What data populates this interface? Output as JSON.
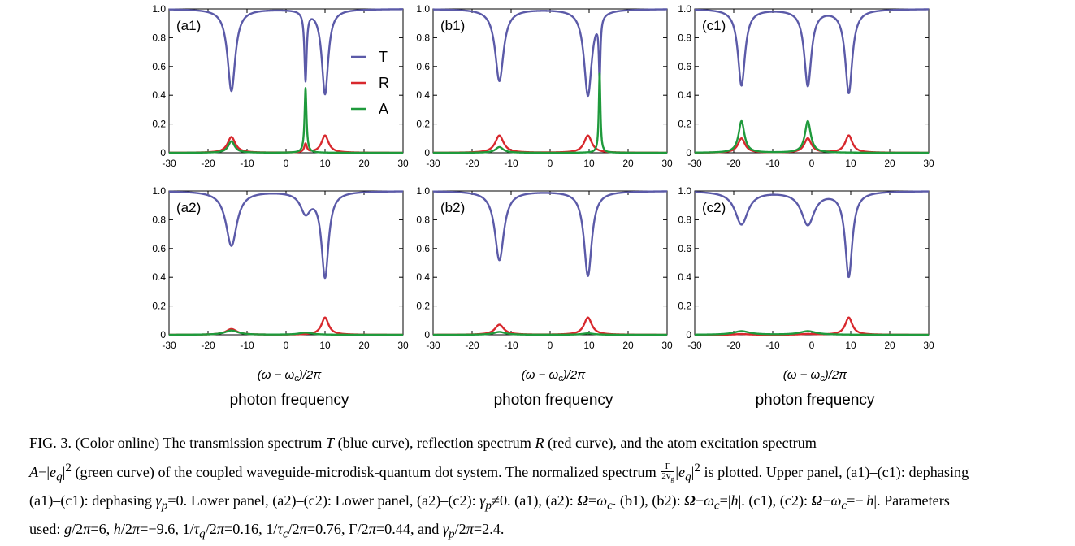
{
  "figure": {
    "xlabel_math": "(ω − ω",
    "xlabel_sub": "c",
    "xlabel_tail": ")/2π",
    "xlabel_text": "photon frequency",
    "legend": [
      {
        "name": "T",
        "color": "#5b5aa8"
      },
      {
        "name": "R",
        "color": "#d8282d"
      },
      {
        "name": "A",
        "color": "#1f9a3c"
      }
    ]
  },
  "chart_data": [
    {
      "type": "line",
      "panel": "(a1)",
      "xlim": [
        -30,
        30
      ],
      "ylim": [
        0,
        1
      ],
      "xticks": [
        "-30",
        "-20",
        "-10",
        "0",
        "10",
        "20",
        "30"
      ],
      "yticks": [
        "0",
        "0.2",
        "0.4",
        "0.6",
        "0.8",
        "1.0"
      ],
      "series": [
        {
          "name": "T",
          "color": "#5b5aa8",
          "baseline": 1,
          "features": [
            {
              "x": -14,
              "depth": 0.57,
              "width": 1.2
            },
            {
              "x": 5,
              "depth": 0.48,
              "width": 0.35
            },
            {
              "x": 10,
              "depth": 0.59,
              "width": 1.0
            }
          ]
        },
        {
          "name": "R",
          "color": "#d8282d",
          "baseline": 0,
          "features": [
            {
              "x": -14,
              "height": 0.11,
              "width": 1.2
            },
            {
              "x": 5,
              "height": 0.06,
              "width": 0.4
            },
            {
              "x": 10,
              "height": 0.12,
              "width": 1.1
            }
          ]
        },
        {
          "name": "A",
          "color": "#1f9a3c",
          "baseline": 0,
          "features": [
            {
              "x": -14,
              "height": 0.08,
              "width": 1.0
            },
            {
              "x": 5,
              "height": 0.45,
              "width": 0.3
            }
          ]
        }
      ]
    },
    {
      "type": "line",
      "panel": "(b1)",
      "xlim": [
        -30,
        30
      ],
      "ylim": [
        0,
        1
      ],
      "xticks": [
        "-30",
        "-20",
        "-10",
        "0",
        "10",
        "20",
        "30"
      ],
      "yticks": [
        "0",
        "0.2",
        "0.4",
        "0.6",
        "0.8",
        "1.0"
      ],
      "series": [
        {
          "name": "T",
          "color": "#5b5aa8",
          "baseline": 1,
          "features": [
            {
              "x": -13,
              "depth": 0.5,
              "width": 1.3
            },
            {
              "x": 9.7,
              "depth": 0.6,
              "width": 1.2
            },
            {
              "x": 12.7,
              "depth": 0.42,
              "width": 0.25
            }
          ]
        },
        {
          "name": "R",
          "color": "#d8282d",
          "baseline": 0,
          "features": [
            {
              "x": -13,
              "height": 0.12,
              "width": 1.3
            },
            {
              "x": 9.7,
              "height": 0.12,
              "width": 1.2
            }
          ]
        },
        {
          "name": "A",
          "color": "#1f9a3c",
          "baseline": 0,
          "features": [
            {
              "x": -13,
              "height": 0.04,
              "width": 1.2
            },
            {
              "x": 12.7,
              "height": 0.56,
              "width": 0.25
            }
          ]
        }
      ]
    },
    {
      "type": "line",
      "panel": "(c1)",
      "xlim": [
        -30,
        30
      ],
      "ylim": [
        0,
        1
      ],
      "xticks": [
        "-30",
        "-20",
        "-10",
        "0",
        "10",
        "20",
        "30"
      ],
      "yticks": [
        "0",
        "0.2",
        "0.4",
        "0.6",
        "0.8",
        "1.0"
      ],
      "series": [
        {
          "name": "T",
          "color": "#5b5aa8",
          "baseline": 1,
          "features": [
            {
              "x": -18,
              "depth": 0.53,
              "width": 1.1
            },
            {
              "x": -1,
              "depth": 0.53,
              "width": 1.1
            },
            {
              "x": 9.5,
              "depth": 0.58,
              "width": 1.1
            }
          ]
        },
        {
          "name": "R",
          "color": "#d8282d",
          "baseline": 0,
          "features": [
            {
              "x": -18,
              "height": 0.1,
              "width": 1.1
            },
            {
              "x": -1,
              "height": 0.1,
              "width": 1.1
            },
            {
              "x": 9.5,
              "height": 0.12,
              "width": 1.1
            }
          ]
        },
        {
          "name": "A",
          "color": "#1f9a3c",
          "baseline": 0,
          "features": [
            {
              "x": -18,
              "height": 0.22,
              "width": 0.9
            },
            {
              "x": -1,
              "height": 0.22,
              "width": 0.9
            }
          ]
        }
      ]
    },
    {
      "type": "line",
      "panel": "(a2)",
      "xlim": [
        -30,
        30
      ],
      "ylim": [
        0,
        1
      ],
      "xticks": [
        "-30",
        "-20",
        "-10",
        "0",
        "10",
        "20",
        "30"
      ],
      "yticks": [
        "0",
        "0.2",
        "0.4",
        "0.6",
        "0.8",
        "1.0"
      ],
      "series": [
        {
          "name": "T",
          "color": "#5b5aa8",
          "baseline": 1,
          "features": [
            {
              "x": -14,
              "depth": 0.38,
              "width": 1.7
            },
            {
              "x": 5,
              "depth": 0.14,
              "width": 1.6
            },
            {
              "x": 10,
              "depth": 0.59,
              "width": 1.1
            }
          ]
        },
        {
          "name": "R",
          "color": "#d8282d",
          "baseline": 0,
          "features": [
            {
              "x": -14,
              "height": 0.04,
              "width": 1.7
            },
            {
              "x": 10,
              "height": 0.12,
              "width": 1.1
            }
          ]
        },
        {
          "name": "A",
          "color": "#1f9a3c",
          "baseline": 0,
          "features": [
            {
              "x": -14,
              "height": 0.03,
              "width": 2.0
            },
            {
              "x": 5,
              "height": 0.015,
              "width": 2.0
            }
          ]
        }
      ]
    },
    {
      "type": "line",
      "panel": "(b2)",
      "xlim": [
        -30,
        30
      ],
      "ylim": [
        0,
        1
      ],
      "xticks": [
        "-30",
        "-20",
        "-10",
        "0",
        "10",
        "20",
        "30"
      ],
      "yticks": [
        "0",
        "0.2",
        "0.4",
        "0.6",
        "0.8",
        "1.0"
      ],
      "series": [
        {
          "name": "T",
          "color": "#5b5aa8",
          "baseline": 1,
          "features": [
            {
              "x": -13,
              "depth": 0.48,
              "width": 1.4
            },
            {
              "x": 9.7,
              "depth": 0.59,
              "width": 1.2
            }
          ]
        },
        {
          "name": "R",
          "color": "#d8282d",
          "baseline": 0,
          "features": [
            {
              "x": -13,
              "height": 0.07,
              "width": 1.4
            },
            {
              "x": 9.7,
              "height": 0.12,
              "width": 1.2
            }
          ]
        },
        {
          "name": "A",
          "color": "#1f9a3c",
          "baseline": 0,
          "features": [
            {
              "x": -13,
              "height": 0.02,
              "width": 1.8
            },
            {
              "x": 9.7,
              "height": 0.01,
              "width": 1.8
            }
          ]
        }
      ]
    },
    {
      "type": "line",
      "panel": "(c2)",
      "xlim": [
        -30,
        30
      ],
      "ylim": [
        0,
        1
      ],
      "xticks": [
        "-30",
        "-20",
        "-10",
        "0",
        "10",
        "20",
        "30"
      ],
      "yticks": [
        "0",
        "0.2",
        "0.4",
        "0.6",
        "0.8",
        "1.0"
      ],
      "series": [
        {
          "name": "T",
          "color": "#5b5aa8",
          "baseline": 1,
          "features": [
            {
              "x": -18,
              "depth": 0.23,
              "width": 2.0
            },
            {
              "x": -1,
              "depth": 0.23,
              "width": 2.0
            },
            {
              "x": 9.5,
              "depth": 0.59,
              "width": 1.1
            }
          ]
        },
        {
          "name": "R",
          "color": "#d8282d",
          "baseline": 0,
          "features": [
            {
              "x": -18,
              "height": 0.005,
              "width": 2.0
            },
            {
              "x": -1,
              "height": 0.005,
              "width": 2.0
            },
            {
              "x": 9.5,
              "height": 0.12,
              "width": 1.1
            }
          ]
        },
        {
          "name": "A",
          "color": "#1f9a3c",
          "baseline": 0,
          "features": [
            {
              "x": -18,
              "height": 0.025,
              "width": 2.5
            },
            {
              "x": -1,
              "height": 0.025,
              "width": 2.5
            }
          ]
        }
      ]
    }
  ],
  "caption": {
    "label": "FIG. 3.",
    "part1": " (Color online) The transmission spectrum ",
    "T": "T",
    "part2": " (blue curve), reflection spectrum ",
    "R": "R",
    "part3": " (red curve), and the atom excitation spectrum ",
    "A": "A",
    "part4": "≡|",
    "e": "e",
    "q": "q",
    "part5": "|",
    "sup2": "2",
    "part6": " (green curve) of the coupled waveguide-microdisk-quantum dot system. The normalized spectrum ",
    "frac_num": "Γ",
    "frac_den": "2v",
    "frac_den_sub": "g",
    "part7": "|",
    "part8": " is plotted. Upper panel, (a1)–(c1): dephasing ",
    "gamma": "γ",
    "p": "p",
    "part9": "=0. Lower panel, (a2)–(c2): ",
    "part10": "≠0. (a1), (a2): ",
    "Omega": "Ω",
    "part11": "=",
    "omega": "ω",
    "c": "c",
    "part12": ". (b1), (b2): ",
    "part13": "−",
    "part14": "=|",
    "h": "h",
    "part15": "|. (c1), (c2): ",
    "part16": "=−|",
    "part17": "|. Parameters used: ",
    "g": "g",
    "part18": "/2",
    "pi": "π",
    "part19": "=6, ",
    "part20": "=−9.6, 1/",
    "tau": "τ",
    "part21": "=0.16, 1/",
    "part22": "=0.76, Γ/2",
    "part23": "=0.44, and ",
    "part24": "=2.4."
  }
}
